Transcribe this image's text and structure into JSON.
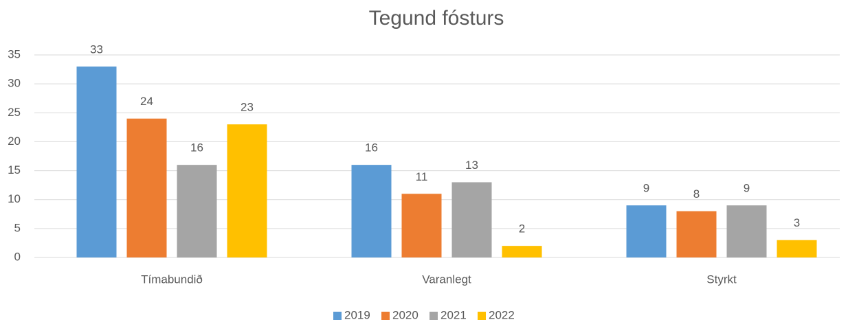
{
  "chart_data": {
    "type": "bar",
    "title": "Tegund fósturs",
    "categories": [
      "Tímabundið",
      "Varanlegt",
      "Styrkt"
    ],
    "series": [
      {
        "name": "2019",
        "color": "#5b9bd5",
        "values": [
          33,
          16,
          9
        ]
      },
      {
        "name": "2020",
        "color": "#ed7d31",
        "values": [
          24,
          11,
          8
        ]
      },
      {
        "name": "2021",
        "color": "#a5a5a5",
        "values": [
          16,
          13,
          9
        ]
      },
      {
        "name": "2022",
        "color": "#ffc000",
        "values": [
          23,
          2,
          3
        ]
      }
    ],
    "ylim": [
      0,
      35
    ],
    "yticks": [
      0,
      5,
      10,
      15,
      20,
      25,
      30,
      35
    ],
    "grid": true,
    "legend": "bottom"
  }
}
